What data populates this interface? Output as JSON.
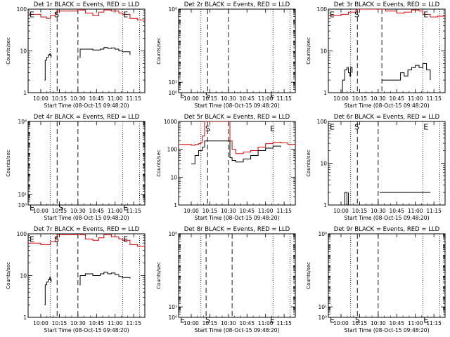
{
  "page": {
    "background": "#ffffff"
  },
  "colors": {
    "events": "#000000",
    "lld": "#dd0000",
    "axis": "#000000"
  },
  "common": {
    "xlabel": "Start Time (08-Oct-15 09:48:20)",
    "ylabel": "Counts/sec",
    "xticks": [
      {
        "t": 10.0,
        "label": "10:00"
      },
      {
        "t": 10.25,
        "label": "10:15"
      },
      {
        "t": 10.5,
        "label": "10:30"
      },
      {
        "t": 10.75,
        "label": "10:45"
      },
      {
        "t": 11.0,
        "label": "11:00"
      },
      {
        "t": 11.25,
        "label": "11:15"
      }
    ],
    "xlim": [
      9.83,
      11.4
    ],
    "markers": {
      "dotted": [
        10.13,
        11.1,
        11.33
      ],
      "dashed": [
        10.22,
        10.5
      ],
      "dashed_3r": [
        10.22,
        10.55
      ],
      "dashed_8r": [
        10.2,
        10.55
      ]
    }
  },
  "chart_data": [
    {
      "type": "line",
      "title": "Det 1r BLACK = Events, RED = LLD",
      "ylim": [
        1,
        100
      ],
      "yticks": [
        {
          "v": 1,
          "label": "1"
        },
        {
          "v": 10,
          "label": "10"
        },
        {
          "v": 100,
          "label": "100"
        }
      ],
      "letters": [
        {
          "text": "E",
          "t": 9.84,
          "v": 95
        },
        {
          "text": "S",
          "t": 10.17,
          "v": 95
        },
        {
          "text": "E",
          "t": 11.1,
          "v": 95
        }
      ],
      "series": [
        {
          "name": "LLD",
          "color": "red",
          "x": [
            9.84,
            10.0,
            10.08,
            10.13,
            10.2,
            10.22,
            10.5,
            10.52,
            10.6,
            10.7,
            10.78,
            10.85,
            10.95,
            11.05,
            11.1,
            11.2,
            11.3,
            11.4
          ],
          "y": [
            75,
            65,
            60,
            70,
            80,
            90,
            100,
            95,
            80,
            70,
            85,
            95,
            90,
            80,
            75,
            60,
            55,
            58
          ]
        },
        {
          "name": "Events",
          "color": "black",
          "x": [
            10.05,
            10.06,
            10.08,
            10.1,
            10.12,
            10.13,
            10.14
          ],
          "y": [
            2,
            6,
            7,
            8,
            8.5,
            8,
            7
          ]
        },
        {
          "name": "Events",
          "color": "black",
          "x": [
            10.52,
            10.53,
            10.6,
            10.7,
            10.8,
            10.85,
            10.9,
            10.95,
            11.0,
            11.05,
            11.1,
            11.2
          ],
          "y": [
            7,
            11,
            11,
            10.5,
            11,
            12,
            11.5,
            11.8,
            11,
            10,
            9.5,
            8
          ]
        }
      ]
    },
    {
      "type": "line",
      "title": "Det 2r BLACK = Events, RED = LLD",
      "ylim": [
        1,
        100000000
      ],
      "yticks": [
        {
          "v": 1,
          "label": "10⁰"
        },
        {
          "v": 10,
          "label": "10¹"
        },
        {
          "v": 100000000,
          "label": "10⁸"
        }
      ],
      "letters": [
        {
          "text": "E",
          "t": 9.84,
          "v": 1.5
        },
        {
          "text": "S",
          "t": 10.18,
          "v": 1.5
        },
        {
          "text": "E",
          "t": 11.05,
          "v": 1.5
        }
      ],
      "series": []
    },
    {
      "type": "line",
      "title": "Det 3r BLACK = Events, RED = LLD",
      "ylim": [
        1,
        100
      ],
      "yticks": [
        {
          "v": 1,
          "label": "1"
        },
        {
          "v": 10,
          "label": "10"
        },
        {
          "v": 100,
          "label": "100"
        }
      ],
      "letters": [
        {
          "text": "E",
          "t": 9.84,
          "v": 95
        },
        {
          "text": "S",
          "t": 10.17,
          "v": 95
        },
        {
          "text": "E",
          "t": 11.1,
          "v": 95
        }
      ],
      "series": [
        {
          "name": "LLD",
          "color": "red",
          "x": [
            9.84,
            10.0,
            10.1,
            10.2,
            10.22,
            10.5,
            10.6,
            10.75,
            10.85,
            10.95,
            11.05,
            11.1,
            11.2,
            11.3,
            11.4
          ],
          "y": [
            70,
            75,
            85,
            95,
            100,
            100,
            90,
            80,
            85,
            95,
            90,
            75,
            65,
            68,
            70
          ]
        },
        {
          "name": "Events",
          "color": "black",
          "x": [
            10.0,
            10.02,
            10.05,
            10.08,
            10.1,
            10.12,
            10.13,
            10.15
          ],
          "y": [
            1,
            2,
            3.5,
            4,
            3,
            2.5,
            4,
            3
          ]
        },
        {
          "name": "Events",
          "color": "black",
          "x": [
            10.55,
            10.6,
            10.65,
            10.7,
            10.75,
            10.8,
            10.85,
            10.9,
            10.95,
            11.0,
            11.05,
            11.1,
            11.15,
            11.2
          ],
          "y": [
            2,
            2,
            2,
            2,
            2,
            3,
            2.5,
            3.5,
            4,
            4.5,
            4,
            5,
            3.5,
            2
          ]
        }
      ]
    },
    {
      "type": "line",
      "title": "Det 4r BLACK = Events, RED = LLD",
      "ylim": [
        1,
        100000000
      ],
      "yticks": [
        {
          "v": 1,
          "label": "10⁰"
        },
        {
          "v": 10,
          "label": "10¹"
        },
        {
          "v": 100000000,
          "label": "10⁸"
        }
      ],
      "letters": [
        {
          "text": "E",
          "t": 9.84,
          "v": 1.5
        },
        {
          "text": "S",
          "t": 10.23,
          "v": 1.5
        },
        {
          "text": "E",
          "t": 11.1,
          "v": 1.5
        }
      ],
      "series": []
    },
    {
      "type": "line",
      "title": "Det 5r BLACK = Events, RED = LLD",
      "ylim": [
        1,
        1000
      ],
      "yticks": [
        {
          "v": 1,
          "label": "1"
        },
        {
          "v": 10,
          "label": "10"
        },
        {
          "v": 100,
          "label": "100"
        },
        {
          "v": 1000,
          "label": "1000"
        }
      ],
      "letters": [
        {
          "text": "S",
          "t": 10.18,
          "v": 800
        },
        {
          "text": "E",
          "t": 11.05,
          "v": 800
        }
      ],
      "series": [
        {
          "name": "LLD",
          "color": "red",
          "x": [
            9.84,
            10.0,
            10.05,
            10.1,
            10.13,
            10.15,
            10.18,
            10.22,
            10.5,
            10.52,
            10.55,
            10.6,
            10.7,
            10.8,
            10.9,
            11.0,
            11.1,
            11.2,
            11.3,
            11.4
          ],
          "y": [
            150,
            140,
            150,
            160,
            180,
            300,
            1000,
            1000,
            1000,
            200,
            100,
            70,
            80,
            90,
            120,
            160,
            180,
            170,
            150,
            140
          ]
        },
        {
          "name": "Events",
          "color": "black",
          "x": [
            10.0,
            10.05,
            10.1,
            10.15,
            10.18,
            10.52,
            10.55,
            10.6,
            10.7,
            10.8,
            10.9,
            11.0,
            11.1,
            11.2
          ],
          "y": [
            30,
            60,
            90,
            120,
            200,
            50,
            40,
            35,
            45,
            60,
            90,
            110,
            130,
            120
          ]
        }
      ]
    },
    {
      "type": "line",
      "title": "Det 6r BLACK = Events, RED = LLD",
      "ylim": [
        1,
        100
      ],
      "yticks": [
        {
          "v": 1,
          "label": "1"
        },
        {
          "v": 10,
          "label": "10"
        },
        {
          "v": 100,
          "label": "100"
        }
      ],
      "letters": [
        {
          "text": "E",
          "t": 9.84,
          "v": 95
        },
        {
          "text": "S",
          "t": 10.17,
          "v": 95
        },
        {
          "text": "E",
          "t": 11.1,
          "v": 95
        }
      ],
      "series": [
        {
          "name": "Events",
          "color": "black",
          "x": [
            10.0,
            10.02,
            10.05,
            10.08,
            10.1
          ],
          "y": [
            1,
            1,
            2,
            1,
            2
          ]
        },
        {
          "name": "Events",
          "color": "black",
          "x": [
            10.52,
            10.6,
            10.7,
            10.8,
            10.9,
            11.0,
            11.1,
            11.2
          ],
          "y": [
            2,
            2,
            2,
            2,
            2,
            2,
            2,
            2
          ]
        }
      ]
    },
    {
      "type": "line",
      "title": "Det 7r BLACK = Events, RED = LLD",
      "ylim": [
        1,
        100
      ],
      "yticks": [
        {
          "v": 1,
          "label": "1"
        },
        {
          "v": 10,
          "label": "10"
        },
        {
          "v": 100,
          "label": "100"
        }
      ],
      "letters": [
        {
          "text": "E",
          "t": 9.84,
          "v": 95
        },
        {
          "text": "S",
          "t": 10.17,
          "v": 95
        },
        {
          "text": "E",
          "t": 11.1,
          "v": 95
        }
      ],
      "series": [
        {
          "name": "LLD",
          "color": "red",
          "x": [
            9.84,
            10.0,
            10.08,
            10.13,
            10.2,
            10.22,
            10.5,
            10.52,
            10.6,
            10.7,
            10.78,
            10.85,
            10.95,
            11.05,
            11.1,
            11.2,
            11.3,
            11.4
          ],
          "y": [
            60,
            55,
            55,
            65,
            80,
            95,
            100,
            95,
            75,
            70,
            80,
            95,
            85,
            75,
            70,
            55,
            50,
            52
          ]
        },
        {
          "name": "Events",
          "color": "black",
          "x": [
            10.05,
            10.06,
            10.08,
            10.1,
            10.12,
            10.13,
            10.14
          ],
          "y": [
            2,
            6,
            7,
            8,
            9,
            8,
            7
          ]
        },
        {
          "name": "Events",
          "color": "black",
          "x": [
            10.52,
            10.53,
            10.6,
            10.7,
            10.8,
            10.85,
            10.9,
            10.95,
            11.0,
            11.05,
            11.1,
            11.2
          ],
          "y": [
            6,
            10,
            11,
            10,
            11,
            12,
            11,
            11.5,
            10.5,
            9.5,
            9,
            8.5
          ]
        }
      ]
    },
    {
      "type": "line",
      "title": "Det 8r BLACK = Events, RED = LLD",
      "ylim": [
        1,
        100000000
      ],
      "yticks": [
        {
          "v": 1,
          "label": "10⁰"
        },
        {
          "v": 10,
          "label": "10¹"
        },
        {
          "v": 100000000,
          "label": "10⁸"
        }
      ],
      "letters": [
        {
          "text": "E",
          "t": 9.84,
          "v": 1.5
        },
        {
          "text": "S",
          "t": 10.18,
          "v": 1.5
        },
        {
          "text": "E",
          "t": 11.05,
          "v": 1.5
        }
      ],
      "series": []
    },
    {
      "type": "line",
      "title": "Det 9r BLACK = Events, RED = LLD",
      "ylim": [
        1,
        100000000
      ],
      "yticks": [
        {
          "v": 1,
          "label": "10⁰"
        },
        {
          "v": 10,
          "label": "10¹"
        },
        {
          "v": 100000000,
          "label": "10⁸"
        }
      ],
      "letters": [
        {
          "text": "E",
          "t": 9.84,
          "v": 1.5
        },
        {
          "text": "S",
          "t": 10.18,
          "v": 1.5
        },
        {
          "text": "E",
          "t": 11.1,
          "v": 1.5
        }
      ],
      "series": []
    }
  ]
}
